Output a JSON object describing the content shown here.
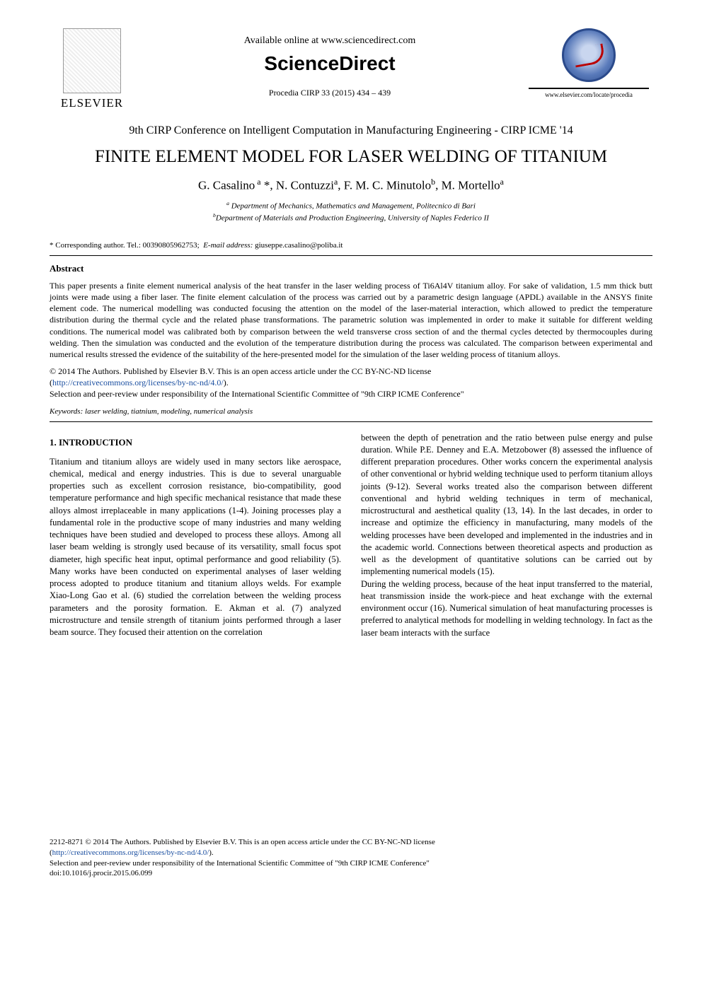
{
  "header": {
    "available_online": "Available online at www.sciencedirect.com",
    "brand": "ScienceDirect",
    "procedia_line": "Procedia CIRP 33 (2015) 434 – 439",
    "elsevier_label": "ELSEVIER",
    "procedia_url": "www.elsevier.com/locate/procedia"
  },
  "conference": "9th CIRP Conference on Intelligent Computation in Manufacturing Engineering - CIRP ICME '14",
  "title": "FINITE ELEMENT MODEL FOR LASER WELDING OF TITANIUM",
  "authors_html": "G. Casalino<sup> a</sup> *, N. Contuzzi<sup>a</sup>, F. M. C. Minutolo<sup>b</sup>, M. Mortello<sup>a</sup>",
  "affiliations": {
    "a": "Department of Mechanics, Mathematics and Management, Politecnico di Bari",
    "b": "Department of Materials and Production Engineering, University of Naples Federico II"
  },
  "corresponding": "* Corresponding author. Tel.: 00390805962753;  E-mail address: giuseppe.casalino@poliba.it",
  "abstract_heading": "Abstract",
  "abstract_body": "This paper presents a finite element numerical analysis of the heat transfer in the laser welding process of Ti6Al4V titanium alloy. For sake of validation, 1.5 mm thick butt joints were made using a fiber laser. The finite element calculation of the process was carried out by a parametric design language (APDL) available in the ANSYS finite element code. The numerical modelling was conducted focusing the attention on the model of the laser-material interaction, which allowed to predict the temperature distribution during the thermal cycle and the related phase transformations. The parametric solution was implemented in order to make it suitable for different welding conditions. The numerical model was calibrated both by comparison between the weld transverse cross section of and the thermal cycles detected by thermocouples during welding. Then the simulation was conducted and the evolution of the temperature distribution during the process was calculated. The comparison between experimental and numerical results stressed the evidence of the suitability of the here-presented model for the simulation of the laser welding process of titanium alloys.",
  "copyright": {
    "line1": "© 2014 The Authors. Published by Elsevier B.V. This is an open access article under the CC BY-NC-ND license",
    "license_url_text": "http://creativecommons.org/licenses/by-nc-nd/4.0/",
    "line2": "Selection and peer-review under responsibility of the International Scientific Committee of \"9th CIRP ICME Conference\""
  },
  "keywords_label": "Keywords:",
  "keywords_text": " laser welding, tiatnium, modeling, numerical analysis",
  "section1_heading": "1. INTRODUCTION",
  "col_left": "Titanium and titanium alloys are widely used in many sectors like aerospace, chemical, medical and energy industries. This is due to several unarguable properties such as excellent corrosion resistance, bio-compatibility, good temperature performance and high specific mechanical resistance that made these alloys almost irreplaceable in many applications (1-4). Joining processes play a fundamental role in the productive scope of many industries and many welding techniques have been studied and developed to process these alloys. Among all laser beam welding is strongly used because of its versatility, small focus spot diameter, high specific heat input, optimal performance and good reliability (5). Many works have been conducted on experimental analyses of laser welding process adopted to produce titanium and titanium alloys welds. For example Xiao-Long Gao et al. (6) studied the correlation between the welding process parameters and the porosity formation. E. Akman et al. (7) analyzed microstructure and tensile strength of titanium joints performed through a laser beam source. They focused their attention on the correlation",
  "col_right": "between the depth of penetration and the ratio between pulse energy and pulse duration. While P.E. Denney and E.A. Metzobower (8) assessed the influence of different preparation procedures. Other works concern the experimental analysis of other conventional or hybrid welding technique used to perform titanium alloys joints (9-12). Several works treated also the comparison between different conventional and hybrid welding techniques in term of mechanical, microstructural and aesthetical quality (13, 14). In the last decades, in order to increase and optimize the efficiency in manufacturing, many models of the welding processes have been developed and implemented in the industries and in the academic world. Connections between theoretical aspects and production as well as the development of quantitative solutions can be carried out by implementing numerical models (15).\nDuring the welding process, because of the heat input transferred to the material, heat transmission inside the work-piece and heat exchange with the external environment occur (16). Numerical simulation of heat manufacturing processes is preferred to analytical methods for modelling in welding technology. In fact as the laser beam interacts with the surface",
  "footer": {
    "line1": "2212-8271 © 2014 The Authors. Published by Elsevier B.V. This is an open access article under the CC BY-NC-ND license",
    "license_url_text": "http://creativecommons.org/licenses/by-nc-nd/4.0/",
    "line2": "Selection and peer-review under responsibility of the International Scientific Committee of \"9th CIRP ICME Conference\"",
    "doi": "doi:10.1016/j.procir.2015.06.099"
  }
}
